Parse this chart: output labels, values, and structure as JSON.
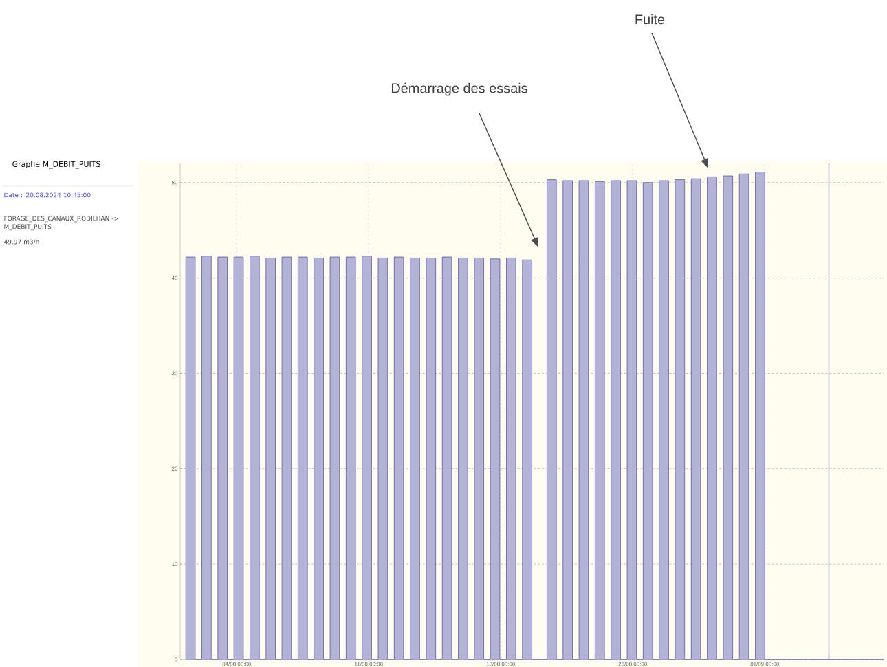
{
  "chart_data": {
    "type": "area",
    "title": "Graphe M_DEBIT_PUITS",
    "x": [
      "2024-08-01T07:12",
      "2024-08-01T07:12",
      "2024-08-01T19:12",
      "2024-08-01T19:12",
      "2024-08-02T03:36",
      "2024-08-02T03:36",
      "2024-08-02T15:36",
      "2024-08-02T15:36",
      "2024-08-03T00:00",
      "2024-08-03T00:00",
      "2024-08-03T12:00",
      "2024-08-03T12:00",
      "2024-08-03T20:24",
      "2024-08-03T20:24",
      "2024-08-04T08:24",
      "2024-08-04T08:24",
      "2024-08-04T16:48",
      "2024-08-04T16:48",
      "2024-08-05T04:48",
      "2024-08-05T04:48",
      "2024-08-05T13:12",
      "2024-08-05T13:12",
      "2024-08-06T01:12",
      "2024-08-06T01:12",
      "2024-08-06T09:36",
      "2024-08-06T09:36",
      "2024-08-06T21:36",
      "2024-08-06T21:36",
      "2024-08-07T06:00",
      "2024-08-07T06:00",
      "2024-08-07T18:00",
      "2024-08-07T18:00",
      "2024-08-08T02:24",
      "2024-08-08T02:24",
      "2024-08-08T14:24",
      "2024-08-08T14:24",
      "2024-08-08T22:48",
      "2024-08-08T22:48",
      "2024-08-09T10:48",
      "2024-08-09T10:48",
      "2024-08-09T19:12",
      "2024-08-09T19:12",
      "2024-08-10T07:12",
      "2024-08-10T07:12",
      "2024-08-10T15:36",
      "2024-08-10T15:36",
      "2024-08-11T03:36",
      "2024-08-11T03:36",
      "2024-08-11T12:00",
      "2024-08-11T12:00",
      "2024-08-12T00:00",
      "2024-08-12T00:00",
      "2024-08-12T08:24",
      "2024-08-12T08:24",
      "2024-08-12T20:24",
      "2024-08-12T20:24",
      "2024-08-13T04:48",
      "2024-08-13T04:48",
      "2024-08-13T16:48",
      "2024-08-13T16:48",
      "2024-08-14T01:12",
      "2024-08-14T01:12",
      "2024-08-14T13:12",
      "2024-08-14T13:12",
      "2024-08-14T21:36",
      "2024-08-14T21:36",
      "2024-08-15T09:36",
      "2024-08-15T09:36",
      "2024-08-15T18:00",
      "2024-08-15T18:00",
      "2024-08-16T06:00",
      "2024-08-16T06:00",
      "2024-08-16T14:24",
      "2024-08-16T14:24",
      "2024-08-17T02:24",
      "2024-08-17T02:24",
      "2024-08-17T10:48",
      "2024-08-17T10:48",
      "2024-08-17T22:48",
      "2024-08-17T22:48",
      "2024-08-18T07:12",
      "2024-08-18T07:12",
      "2024-08-18T19:12",
      "2024-08-18T19:12",
      "2024-08-19T03:36",
      "2024-08-19T03:36",
      "2024-08-19T15:36",
      "2024-08-19T15:36",
      "2024-08-20T10:48",
      "2024-08-20T10:48",
      "2024-08-20T22:48",
      "2024-08-20T22:48",
      "2024-08-21T07:12",
      "2024-08-21T07:12",
      "2024-08-21T19:12",
      "2024-08-21T19:12",
      "2024-08-22T03:36",
      "2024-08-22T03:36",
      "2024-08-22T15:36",
      "2024-08-22T15:36",
      "2024-08-23T00:00",
      "2024-08-23T00:00",
      "2024-08-23T12:00",
      "2024-08-23T12:00",
      "2024-08-23T20:24",
      "2024-08-23T20:24",
      "2024-08-24T08:24",
      "2024-08-24T08:24",
      "2024-08-24T16:48",
      "2024-08-24T16:48",
      "2024-08-25T04:48",
      "2024-08-25T04:48",
      "2024-08-25T13:12",
      "2024-08-25T13:12",
      "2024-08-26T01:12",
      "2024-08-26T01:12",
      "2024-08-26T09:36",
      "2024-08-26T09:36",
      "2024-08-26T21:36",
      "2024-08-26T21:36",
      "2024-08-27T06:00",
      "2024-08-27T06:00",
      "2024-08-27T18:00",
      "2024-08-27T18:00",
      "2024-08-28T02:24",
      "2024-08-28T02:24",
      "2024-08-28T14:24",
      "2024-08-28T14:24",
      "2024-08-28T22:48",
      "2024-08-28T22:48",
      "2024-08-29T10:48",
      "2024-08-29T10:48",
      "2024-08-29T19:12",
      "2024-08-29T19:12",
      "2024-08-30T07:12",
      "2024-08-30T07:12",
      "2024-08-30T15:36",
      "2024-08-30T15:36",
      "2024-08-31T03:36",
      "2024-08-31T03:36",
      "2024-08-31T12:00",
      "2024-08-31T12:00",
      "2024-09-01T00:00",
      "2024-09-01T00:00",
      "2024-09-07T07:12"
    ],
    "values": [
      0,
      42.2,
      42.2,
      0,
      0,
      42.3,
      42.3,
      0,
      0,
      42.2,
      42.2,
      0,
      0,
      42.2,
      42.2,
      0,
      0,
      42.3,
      42.3,
      0,
      0,
      42.1,
      42.1,
      0,
      0,
      42.2,
      42.2,
      0,
      0,
      42.2,
      42.2,
      0,
      0,
      42.1,
      42.1,
      0,
      0,
      42.2,
      42.2,
      0,
      0,
      42.2,
      42.2,
      0,
      0,
      42.3,
      42.3,
      0,
      0,
      42.1,
      42.1,
      0,
      0,
      42.2,
      42.2,
      0,
      0,
      42.1,
      42.1,
      0,
      0,
      42.1,
      42.1,
      0,
      0,
      42.2,
      42.2,
      0,
      0,
      42.1,
      42.1,
      0,
      0,
      42.1,
      42.1,
      0,
      0,
      42.0,
      42.0,
      0,
      0,
      42.1,
      42.1,
      0,
      0,
      41.9,
      41.9,
      0,
      0,
      50.3,
      50.3,
      0,
      0,
      50.2,
      50.2,
      0,
      0,
      50.2,
      50.2,
      0,
      0,
      50.1,
      50.1,
      0,
      0,
      50.2,
      50.2,
      0,
      0,
      50.2,
      50.2,
      0,
      0,
      50.0,
      50.0,
      0,
      0,
      50.2,
      50.2,
      0,
      0,
      50.3,
      50.3,
      0,
      0,
      50.4,
      50.4,
      0,
      0,
      50.6,
      50.6,
      0,
      0,
      50.7,
      50.7,
      0,
      0,
      50.9,
      50.9,
      0,
      0,
      51.1,
      51.1,
      0,
      0
    ],
    "color": "#5656a8",
    "xlim": [
      "2024-08-01T00:00",
      "2024-09-07T07:12"
    ],
    "ylim": [
      0,
      52
    ],
    "xticks": [
      {
        "value": "2024-08-04T00:00",
        "label": "04/08 00:00"
      },
      {
        "value": "2024-08-11T00:00",
        "label": "11/08 00:00"
      },
      {
        "value": "2024-08-18T00:00",
        "label": "18/08 00:00"
      },
      {
        "value": "2024-08-25T00:00",
        "label": "25/08 00:00"
      },
      {
        "value": "2024-09-01T00:00",
        "label": "01/09 00:00"
      }
    ],
    "yticks": [
      0,
      10,
      20,
      30,
      40,
      50
    ],
    "grid": true,
    "ref_lines": [
      {
        "axis": "x",
        "value": "2024-09-04T09:36",
        "color": "#9a9ab8"
      }
    ],
    "annotations": [
      "Démarrage des essais",
      "Fuite",
      "Date : 20.08.2024 10:45:00",
      "FORAGE_DES_CANAUX_RODILHAN -> M_DEBIT_PUITS",
      "49.97 m3/h"
    ]
  }
}
